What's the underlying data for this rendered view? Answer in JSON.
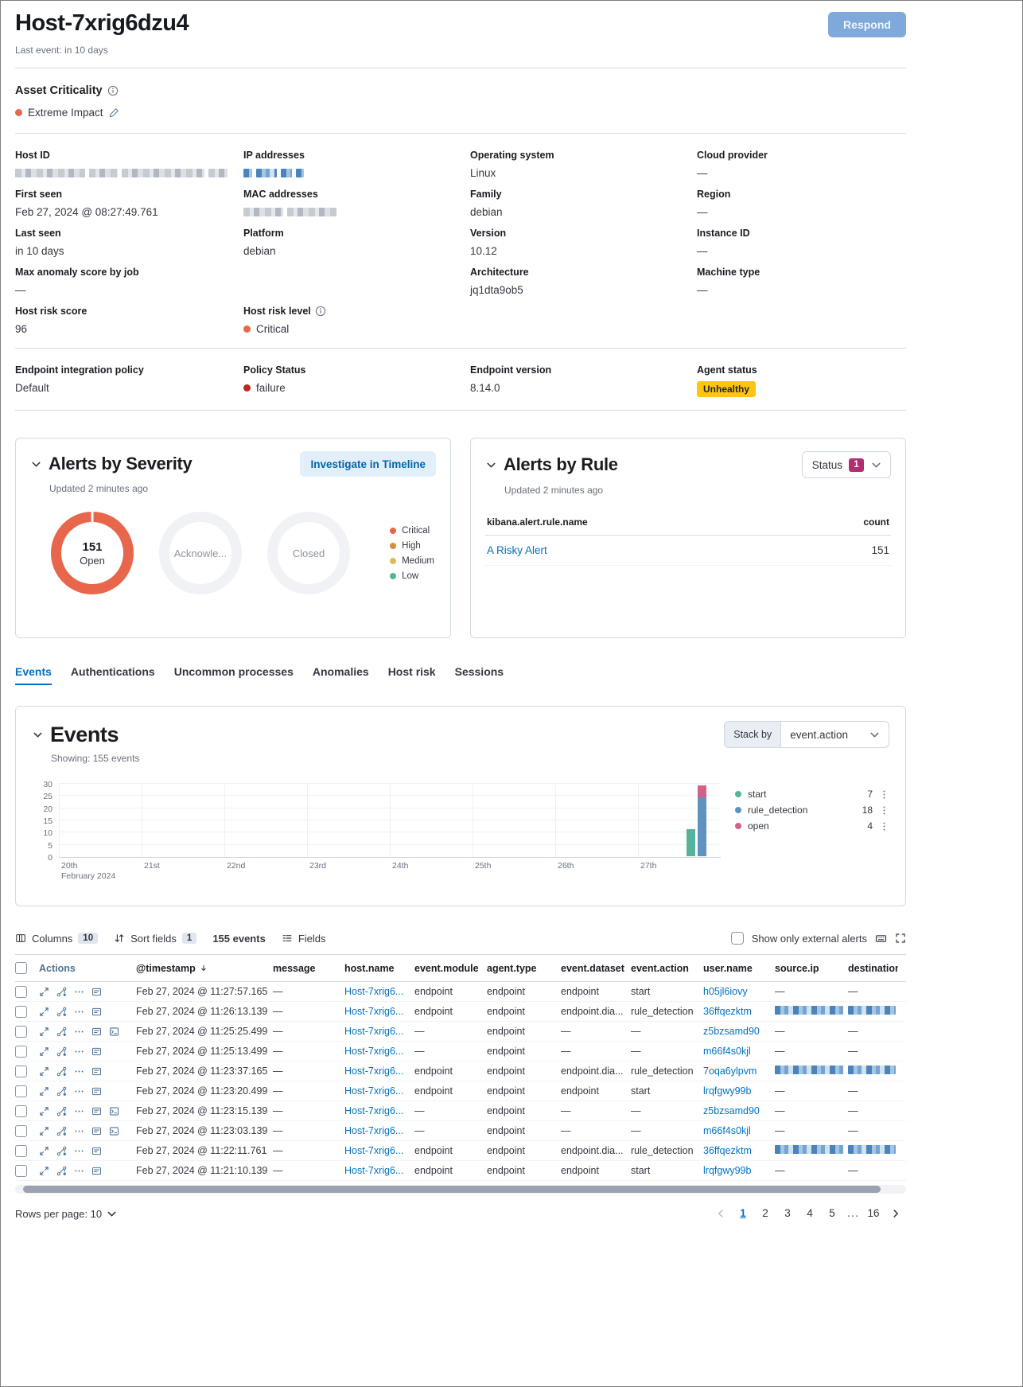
{
  "page": {
    "title": "Host-7xrig6dzu4",
    "last_event": "Last event: in 10 days",
    "respond_label": "Respond"
  },
  "asset_criticality": {
    "label": "Asset Criticality",
    "value": "Extreme Impact"
  },
  "colors": {
    "link": "#0071C2",
    "active_tab": "#0071C2",
    "open_donut": "#E7664C",
    "warning_badge": "#FEC514",
    "accent_badge": "#B12E72",
    "critical_dot": "#E7664C",
    "failure_dot": "#BD271E",
    "extreme_impact_dot": "#E7664C"
  },
  "overview": {
    "cells": [
      {
        "label": "Host ID",
        "type": "redacted",
        "palette": "gray",
        "segments": [
          88,
          36,
          104,
          24
        ]
      },
      {
        "label": "IP addresses",
        "type": "redacted",
        "palette": "blue",
        "segments": [
          11,
          26,
          14,
          10
        ]
      },
      {
        "label": "Operating system",
        "type": "text",
        "value": "Linux"
      },
      {
        "label": "Cloud provider",
        "type": "text",
        "value": "—"
      },
      {
        "label": "First seen",
        "type": "text",
        "value": "Feb 27, 2024 @ 08:27:49.761"
      },
      {
        "label": "MAC addresses",
        "type": "redacted",
        "palette": "gray",
        "segments": [
          50,
          62
        ]
      },
      {
        "label": "Family",
        "type": "text",
        "value": "debian"
      },
      {
        "label": "Region",
        "type": "text",
        "value": "—"
      },
      {
        "label": "Last seen",
        "type": "text",
        "value": "in 10 days"
      },
      {
        "label": "Platform",
        "type": "text",
        "value": "debian"
      },
      {
        "label": "Version",
        "type": "text",
        "value": "10.12"
      },
      {
        "label": "Instance ID",
        "type": "text",
        "value": "—"
      },
      {
        "label": "Max anomaly score by job",
        "type": "text",
        "value": "—"
      },
      null,
      {
        "label": "Architecture",
        "type": "text",
        "value": "jq1dta9ob5"
      },
      {
        "label": "Machine type",
        "type": "text",
        "value": "—"
      },
      {
        "label": "Host risk score",
        "type": "text",
        "value": "96"
      },
      {
        "label": "Host risk level",
        "type": "dot-text",
        "value": "Critical",
        "dot": "#E7664C",
        "info": true
      },
      null,
      null
    ]
  },
  "endpoint": {
    "cells": [
      {
        "label": "Endpoint integration policy",
        "type": "text",
        "value": "Default"
      },
      {
        "label": "Policy Status",
        "type": "dot-text",
        "value": "failure",
        "dot": "#BD271E"
      },
      {
        "label": "Endpoint version",
        "type": "text",
        "value": "8.14.0"
      },
      {
        "label": "Agent status",
        "type": "badge",
        "value": "Unhealthy",
        "badge_color": "#FEC514"
      }
    ]
  },
  "severity": {
    "title": "Alerts by Severity",
    "updated": "Updated 2 minutes ago",
    "investigate_label": "Investigate in Timeline",
    "donuts": [
      {
        "value": "151",
        "label": "Open"
      },
      {
        "label": "Acknowle..."
      },
      {
        "label": "Closed"
      }
    ],
    "legend": [
      {
        "label": "Critical",
        "color": "#E7664C"
      },
      {
        "label": "High",
        "color": "#DA8B45"
      },
      {
        "label": "Medium",
        "color": "#D6BF57"
      },
      {
        "label": "Low",
        "color": "#54B399"
      }
    ]
  },
  "rule": {
    "title": "Alerts by Rule",
    "updated": "Updated 2 minutes ago",
    "status_label": "Status",
    "status_badge": "1",
    "columns": [
      "kibana.alert.rule.name",
      "count"
    ],
    "rows": [
      {
        "name": "A Risky Alert",
        "count": "151"
      }
    ]
  },
  "tabs": {
    "items": [
      "Events",
      "Authentications",
      "Uncommon processes",
      "Anomalies",
      "Host risk",
      "Sessions"
    ],
    "active": "Events"
  },
  "events": {
    "title": "Events",
    "showing": "Showing: 155 events",
    "stack_by_label": "Stack by",
    "stack_by_value": "event.action"
  },
  "chart_data": {
    "type": "bar",
    "stacked": true,
    "title": "Events by event.action",
    "ylim": [
      0,
      30
    ],
    "y_ticks": [
      0,
      5,
      10,
      15,
      20,
      25,
      30
    ],
    "x_tick_labels": [
      "20th",
      "21st",
      "22nd",
      "23rd",
      "24th",
      "25th",
      "26th",
      "27th"
    ],
    "x_axis_caption": "February 2024",
    "grid": true,
    "legend_position": "right",
    "series": [
      {
        "name": "start",
        "color": "#54B399",
        "legend_count": 7
      },
      {
        "name": "rule_detection",
        "color": "#6092C0",
        "legend_count": 18
      },
      {
        "name": "open",
        "color": "#D36086",
        "legend_count": 4
      }
    ],
    "bars": [
      {
        "x_frac": 0.962,
        "stacks": [
          {
            "series": "start",
            "value": 11
          }
        ]
      },
      {
        "x_frac": 0.978,
        "stacks": [
          {
            "series": "rule_detection",
            "value": 24
          },
          {
            "series": "open",
            "value": 5
          }
        ]
      }
    ]
  },
  "toolbar": {
    "columns_label": "Columns",
    "columns_count": "10",
    "sort_label": "Sort fields",
    "sort_count": "1",
    "events_count": "155 events",
    "fields_label": "Fields",
    "external_label": "Show only external alerts"
  },
  "events_table": {
    "columns": [
      "Actions",
      "@timestamp",
      "message",
      "host.name",
      "event.module",
      "agent.type",
      "event.dataset",
      "event.action",
      "user.name",
      "source.ip",
      "destination"
    ],
    "sorted_column": "@timestamp",
    "rows": [
      {
        "timestamp": "Feb 27, 2024 @ 11:27:57.165",
        "message": "—",
        "host": "Host-7xrig6...",
        "module": "endpoint",
        "agent": "endpoint",
        "dataset": "endpoint",
        "action": "start",
        "user": "h05jl6iovy",
        "source": "—",
        "destination": "—",
        "extra_icon": false
      },
      {
        "timestamp": "Feb 27, 2024 @ 11:26:13.139",
        "message": "—",
        "host": "Host-7xrig6...",
        "module": "endpoint",
        "agent": "endpoint",
        "dataset": "endpoint.dia...",
        "action": "rule_detection",
        "user": "36ffqezktm",
        "source": "redacted",
        "destination": "redacted",
        "extra_icon": false
      },
      {
        "timestamp": "Feb 27, 2024 @ 11:25:25.499",
        "message": "—",
        "host": "Host-7xrig6...",
        "module": "—",
        "agent": "endpoint",
        "dataset": "—",
        "action": "—",
        "user": "z5bzsamd90",
        "source": "—",
        "destination": "—",
        "extra_icon": true
      },
      {
        "timestamp": "Feb 27, 2024 @ 11:25:13.499",
        "message": "—",
        "host": "Host-7xrig6...",
        "module": "—",
        "agent": "endpoint",
        "dataset": "—",
        "action": "—",
        "user": "m66f4s0kjl",
        "source": "—",
        "destination": "—",
        "extra_icon": false
      },
      {
        "timestamp": "Feb 27, 2024 @ 11:23:37.165",
        "message": "—",
        "host": "Host-7xrig6...",
        "module": "endpoint",
        "agent": "endpoint",
        "dataset": "endpoint.dia...",
        "action": "rule_detection",
        "user": "7oqa6ylpvm",
        "source": "redacted",
        "destination": "redacted",
        "extra_icon": false
      },
      {
        "timestamp": "Feb 27, 2024 @ 11:23:20.499",
        "message": "—",
        "host": "Host-7xrig6...",
        "module": "endpoint",
        "agent": "endpoint",
        "dataset": "endpoint",
        "action": "start",
        "user": "lrqfgwy99b",
        "source": "—",
        "destination": "—",
        "extra_icon": false
      },
      {
        "timestamp": "Feb 27, 2024 @ 11:23:15.139",
        "message": "—",
        "host": "Host-7xrig6...",
        "module": "—",
        "agent": "endpoint",
        "dataset": "—",
        "action": "—",
        "user": "z5bzsamd90",
        "source": "—",
        "destination": "—",
        "extra_icon": true
      },
      {
        "timestamp": "Feb 27, 2024 @ 11:23:03.139",
        "message": "—",
        "host": "Host-7xrig6...",
        "module": "—",
        "agent": "endpoint",
        "dataset": "—",
        "action": "—",
        "user": "m66f4s0kjl",
        "source": "—",
        "destination": "—",
        "extra_icon": true
      },
      {
        "timestamp": "Feb 27, 2024 @ 11:22:11.761",
        "message": "—",
        "host": "Host-7xrig6...",
        "module": "endpoint",
        "agent": "endpoint",
        "dataset": "endpoint.dia...",
        "action": "rule_detection",
        "user": "36ffqezktm",
        "source": "redacted",
        "destination": "redacted",
        "extra_icon": false
      },
      {
        "timestamp": "Feb 27, 2024 @ 11:21:10.139",
        "message": "—",
        "host": "Host-7xrig6...",
        "module": "endpoint",
        "agent": "endpoint",
        "dataset": "endpoint",
        "action": "start",
        "user": "lrqfgwy99b",
        "source": "—",
        "destination": "—",
        "extra_icon": false
      }
    ]
  },
  "footer": {
    "rows_per_page": "Rows per page: 10",
    "pages": [
      "1",
      "2",
      "3",
      "4",
      "5",
      "…",
      "16"
    ],
    "active_page": "1"
  }
}
